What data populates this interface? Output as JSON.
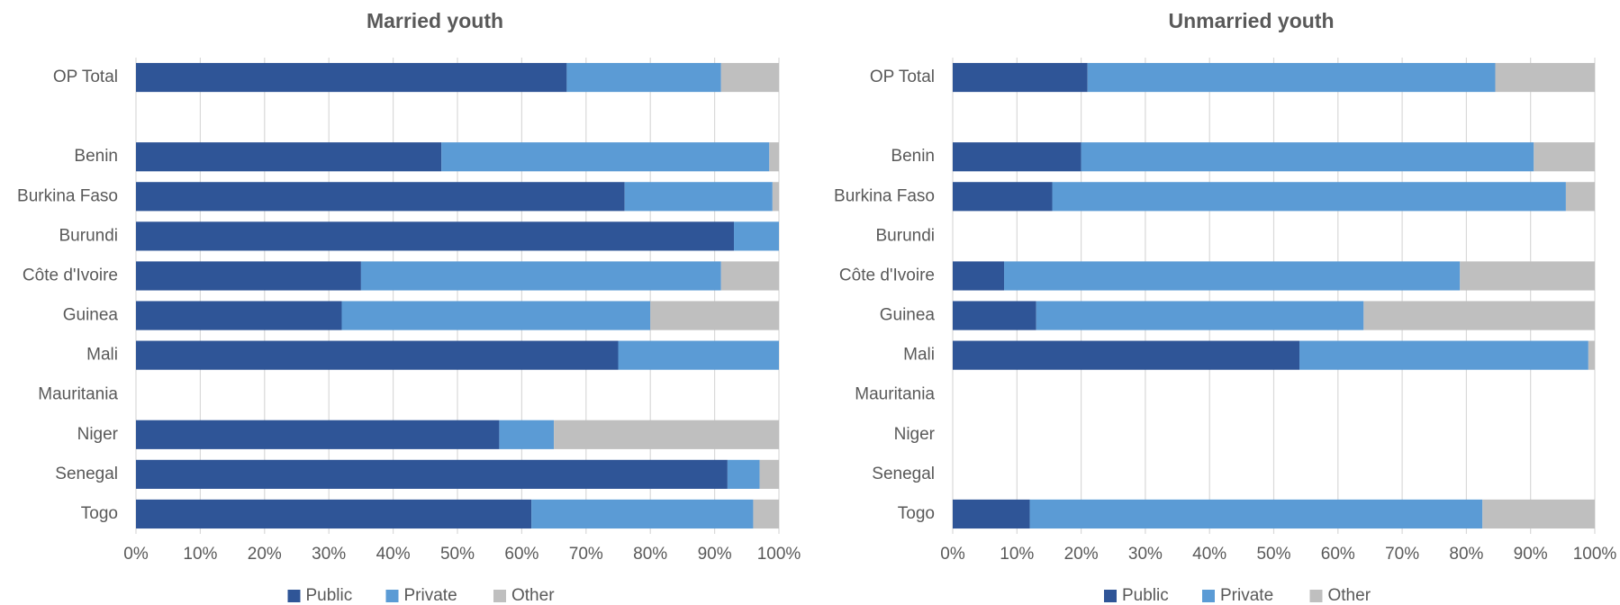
{
  "chart_data": [
    {
      "type": "stacked_bar_horizontal",
      "title": "Married youth",
      "categories": [
        "OP Total",
        null,
        "Benin",
        "Burkina Faso",
        "Burundi",
        "Côte d'Ivoire",
        "Guinea",
        "Mali",
        "Mauritania",
        "Niger",
        "Senegal",
        "Togo"
      ],
      "series": [
        {
          "name": "Public",
          "color": "#2f5597",
          "values": [
            67,
            null,
            47.5,
            76,
            93,
            35,
            32,
            75,
            null,
            56.5,
            92,
            61.5
          ]
        },
        {
          "name": "Private",
          "color": "#5b9bd5",
          "values": [
            24,
            null,
            51,
            23,
            7,
            56,
            48,
            25,
            null,
            8.5,
            5,
            34.5
          ]
        },
        {
          "name": "Other",
          "color": "#bfbfbf",
          "values": [
            9,
            null,
            1.5,
            1,
            0,
            9,
            20,
            0,
            null,
            35,
            3,
            4
          ]
        }
      ],
      "xlim": [
        0,
        100
      ],
      "xticks": [
        {
          "value": 0,
          "label": "0%"
        },
        {
          "value": 10,
          "label": "10%"
        },
        {
          "value": 20,
          "label": "20%"
        },
        {
          "value": 30,
          "label": "30%"
        },
        {
          "value": 40,
          "label": "40%"
        },
        {
          "value": 50,
          "label": "50%"
        },
        {
          "value": 60,
          "label": "60%"
        },
        {
          "value": 70,
          "label": "70%"
        },
        {
          "value": 80,
          "label": "80%"
        },
        {
          "value": 90,
          "label": "90%"
        },
        {
          "value": 100,
          "label": "100%"
        }
      ],
      "grid": true,
      "legend": "bottom"
    },
    {
      "type": "stacked_bar_horizontal",
      "title": "Unmarried youth",
      "categories": [
        "OP Total",
        null,
        "Benin",
        "Burkina Faso",
        "Burundi",
        "Côte d'Ivoire",
        "Guinea",
        "Mali",
        "Mauritania",
        "Niger",
        "Senegal",
        "Togo"
      ],
      "series": [
        {
          "name": "Public",
          "color": "#2f5597",
          "values": [
            21,
            null,
            20,
            15.5,
            null,
            8,
            13,
            54,
            null,
            null,
            null,
            12
          ]
        },
        {
          "name": "Private",
          "color": "#5b9bd5",
          "values": [
            63.5,
            null,
            70.5,
            80,
            null,
            71,
            51,
            45,
            null,
            null,
            null,
            70.5
          ]
        },
        {
          "name": "Other",
          "color": "#bfbfbf",
          "values": [
            15.5,
            null,
            9.5,
            4.5,
            null,
            21,
            36,
            1,
            null,
            null,
            null,
            17.5
          ]
        }
      ],
      "xlim": [
        0,
        100
      ],
      "xticks": [
        {
          "value": 0,
          "label": "0%"
        },
        {
          "value": 10,
          "label": "10%"
        },
        {
          "value": 20,
          "label": "20%"
        },
        {
          "value": 30,
          "label": "30%"
        },
        {
          "value": 40,
          "label": "40%"
        },
        {
          "value": 50,
          "label": "50%"
        },
        {
          "value": 60,
          "label": "60%"
        },
        {
          "value": 70,
          "label": "70%"
        },
        {
          "value": 80,
          "label": "80%"
        },
        {
          "value": 90,
          "label": "90%"
        },
        {
          "value": 100,
          "label": "100%"
        }
      ],
      "grid": true,
      "legend": "bottom"
    }
  ]
}
